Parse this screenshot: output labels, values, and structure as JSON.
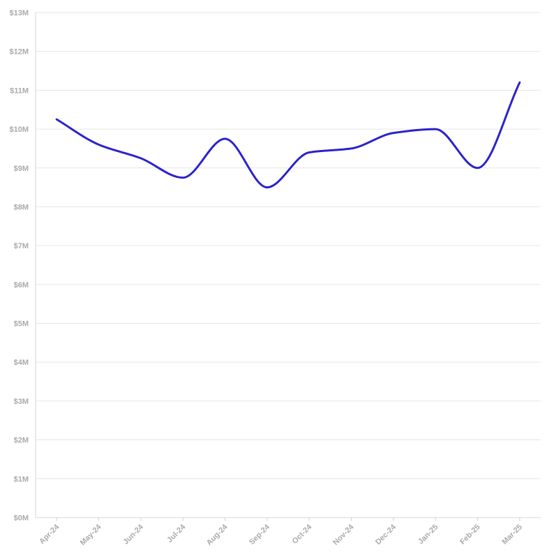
{
  "chart_data": {
    "type": "line",
    "title": "",
    "xlabel": "",
    "ylabel": "",
    "categories": [
      "Apr-24",
      "May-24",
      "Jun-24",
      "Jul-24",
      "Aug-24",
      "Sep-24",
      "Oct-24",
      "Nov-24",
      "Dec-24",
      "Jan-25",
      "Feb-25",
      "Mar-25"
    ],
    "series": [
      {
        "values": [
          10.25,
          9.6,
          9.25,
          8.75,
          9.75,
          8.5,
          9.4,
          9.5,
          9.9,
          10.0,
          9.0,
          11.2
        ]
      }
    ],
    "unit": "M",
    "ylim": [
      0,
      13
    ],
    "y_ticks": [
      "$0M",
      "$1M",
      "$2M",
      "$3M",
      "$4M",
      "$5M",
      "$6M",
      "$7M",
      "$8M",
      "$9M",
      "$10M",
      "$11M",
      "$12M",
      "$13M"
    ],
    "grid": true,
    "legend": "none",
    "colors": {
      "line": "#2b22cc",
      "grid": "#e6e6e6",
      "axis": "#d4d4d4",
      "tick_text": "#aaaaaa"
    }
  }
}
